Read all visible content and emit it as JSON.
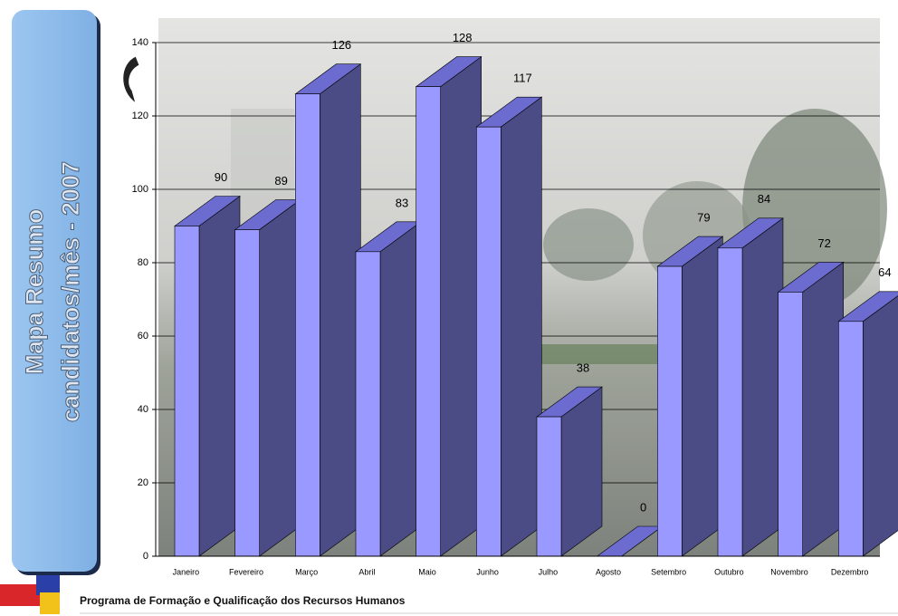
{
  "chart_data": {
    "type": "bar3d",
    "title": "Mapa Resumo",
    "subtitle": "candidatos/mês - 2007",
    "categories": [
      "Janeiro",
      "Fevereiro",
      "Março",
      "Abril",
      "Maio",
      "Junho",
      "Julho",
      "Agosto",
      "Setembro",
      "Outubro",
      "Novembro",
      "Dezembro"
    ],
    "values": [
      90,
      89,
      126,
      83,
      128,
      117,
      38,
      0,
      79,
      84,
      72,
      64
    ],
    "color": "#9999ff",
    "ylim": [
      0,
      140
    ],
    "yticks": [
      0,
      20,
      40,
      60,
      80,
      100,
      120,
      140
    ],
    "grid": true
  },
  "footer": "Programa de Formação e Qualificação dos Recursos Humanos"
}
